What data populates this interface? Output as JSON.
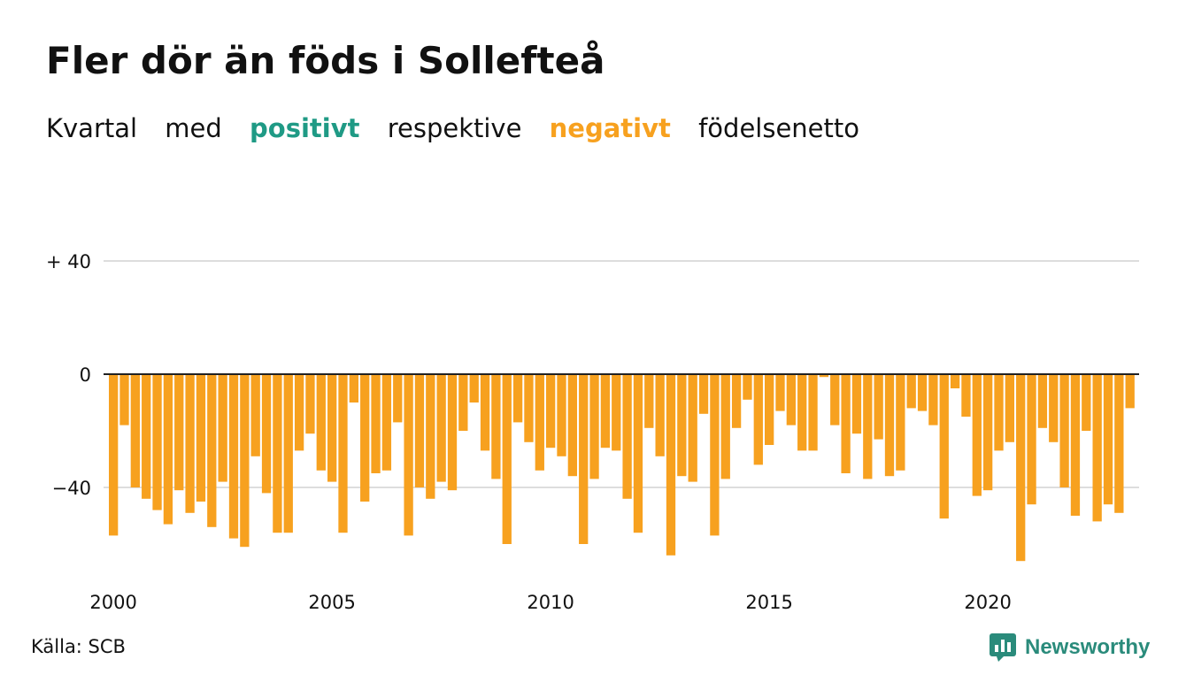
{
  "title": "Fler dör än föds i Sollefteå",
  "subtitle": {
    "w1": "Kvartal",
    "w2": "med",
    "positive_word": "positivt",
    "w3": "respektive",
    "negative_word": "negativt",
    "w4": "födelsenetto"
  },
  "source": "Källa: SCB",
  "brand": {
    "name": "Newsworthy",
    "icon": "newsworthy-logo-icon"
  },
  "colors": {
    "positive": "#1f9a85",
    "negative": "#f7a11f",
    "grid": "#dddddd",
    "zero_line": "#222222",
    "brand": "#2a8b7b"
  },
  "chart_data": {
    "type": "bar",
    "title": "Fler dör än föds i Sollefteå",
    "xlabel": "",
    "ylabel": "",
    "x_start": 2000,
    "x_step": 0.25,
    "xticks": [
      {
        "value": 2000,
        "label": "2000"
      },
      {
        "value": 2005,
        "label": "2005"
      },
      {
        "value": 2010,
        "label": "2010"
      },
      {
        "value": 2015,
        "label": "2015"
      },
      {
        "value": 2020,
        "label": "2020"
      }
    ],
    "yticks": [
      {
        "value": 40,
        "label": "+ 40"
      },
      {
        "value": 0,
        "label": "0"
      },
      {
        "value": -40,
        "label": "−40"
      }
    ],
    "ylim": [
      -70,
      40
    ],
    "grid": true,
    "values": [
      -57,
      -18,
      -40,
      -44,
      -48,
      -53,
      -41,
      -49,
      -45,
      -54,
      -38,
      -58,
      -61,
      -29,
      -42,
      -56,
      -56,
      -27,
      -21,
      -34,
      -38,
      -56,
      -10,
      -45,
      -35,
      -34,
      -17,
      -57,
      -40,
      -44,
      -38,
      -41,
      -20,
      -10,
      -27,
      -37,
      -60,
      -17,
      -24,
      -34,
      -26,
      -29,
      -36,
      -60,
      -37,
      -26,
      -27,
      -44,
      -56,
      -19,
      -29,
      -64,
      -36,
      -38,
      -14,
      -57,
      -37,
      -19,
      -9,
      -32,
      -25,
      -13,
      -18,
      -27,
      -27,
      -1,
      -18,
      -35,
      -21,
      -37,
      -23,
      -36,
      -34,
      -12,
      -13,
      -18,
      -51,
      -5,
      -15,
      -43,
      -41,
      -27,
      -24,
      -66,
      -46,
      -19,
      -24,
      -40,
      -50,
      -20,
      -52,
      -46,
      -49,
      -12
    ]
  }
}
